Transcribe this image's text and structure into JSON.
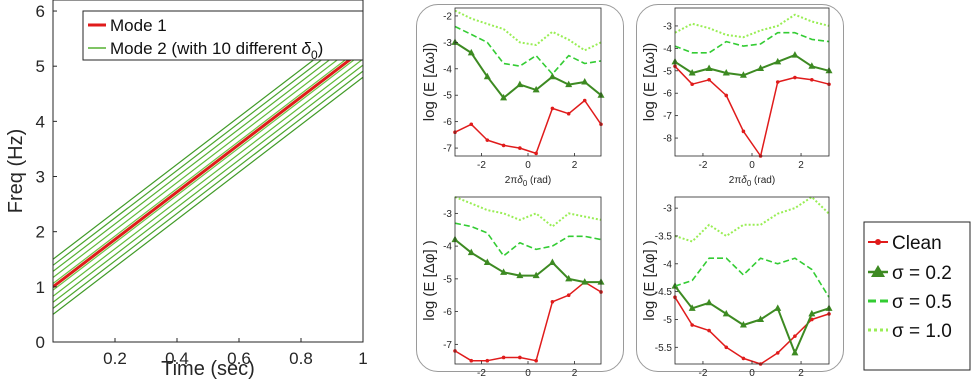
{
  "colors": {
    "mode1": "#e01b1b",
    "mode2": "#55b030",
    "clean": "#e01b1b",
    "s02": "#3d8a22",
    "s05": "#33cc33",
    "s10": "#99ee55"
  },
  "main_axis_labels": {
    "xlabel": "Time (sec)",
    "ylabel": "Freq (Hz)"
  },
  "panel_axis_labels": {
    "xlabel_prefix": "2π",
    "xlabel_symbol": "δ",
    "xlabel_sub": "0",
    "xlabel_suffix": " (rad)",
    "ylabel_omega": "log (E [Δω])",
    "ylabel_phi": "log (E [Δφ] )"
  },
  "main_legend": {
    "mode1": "Mode 1",
    "mode2_prefix": "Mode 2 (with 10 different ",
    "mode2_symbol": "δ",
    "mode2_sub": "0",
    "mode2_suffix": ")"
  },
  "noise_legend": {
    "clean": "Clean",
    "s02": "σ = 0.2",
    "s05": "σ = 0.5",
    "s10": "σ = 1.0"
  },
  "chart_data": [
    {
      "id": "main",
      "type": "line",
      "xlabel": "Time (sec)",
      "ylabel": "Freq (Hz)",
      "xlim": [
        0,
        1
      ],
      "ylim": [
        0,
        6.2
      ],
      "xticks": [
        "0.2",
        "0.4",
        "0.6",
        "0.8",
        "1"
      ],
      "yticks": [
        "0",
        "1",
        "2",
        "3",
        "4",
        "5",
        "6"
      ],
      "series": [
        {
          "name": "Mode 1",
          "x": [
            0,
            1
          ],
          "y": [
            1.0,
            5.3
          ]
        },
        {
          "name": "Mode 2 (with 10 different δ0)",
          "offsets": [
            -0.5,
            -0.39,
            -0.28,
            -0.17,
            -0.06,
            0.06,
            0.17,
            0.28,
            0.39,
            0.5
          ],
          "x": [
            0,
            1
          ],
          "y": [
            1.0,
            5.3
          ]
        }
      ]
    },
    {
      "id": "panel_a",
      "type": "line",
      "xlabel": "2πδ0 (rad)",
      "ylabel": "log (E [Δω])",
      "xlim": [
        -3.14,
        3.14
      ],
      "ylim": [
        -7.3,
        -1.7
      ],
      "xticks": [
        "-2",
        "0",
        "2"
      ],
      "yticks": [
        "-7",
        "-6",
        "-5",
        "-4",
        "-3",
        "-2"
      ],
      "x": [
        -3.14,
        -2.44,
        -1.75,
        -1.05,
        -0.35,
        0.35,
        1.05,
        1.75,
        2.44,
        3.14
      ],
      "series": [
        {
          "name": "Clean",
          "values": [
            -6.4,
            -6.1,
            -6.7,
            -6.9,
            -7.0,
            -7.2,
            -5.5,
            -5.7,
            -5.2,
            -6.1
          ]
        },
        {
          "name": "σ = 0.2",
          "values": [
            -3.0,
            -3.4,
            -4.3,
            -5.1,
            -4.6,
            -4.8,
            -4.3,
            -4.6,
            -4.5,
            -5.0
          ]
        },
        {
          "name": "σ = 0.5",
          "values": [
            -2.4,
            -2.7,
            -3.0,
            -3.8,
            -3.9,
            -3.5,
            -4.2,
            -3.5,
            -3.8,
            -3.7
          ]
        },
        {
          "name": "σ = 1.0",
          "values": [
            -1.8,
            -2.1,
            -2.3,
            -2.5,
            -3.0,
            -3.1,
            -2.6,
            -2.9,
            -3.3,
            -3.0
          ]
        }
      ]
    },
    {
      "id": "panel_b",
      "type": "line",
      "xlabel": "2πδ0 (rad)",
      "ylabel": "log (E [Δω])",
      "xlim": [
        -3.14,
        3.14
      ],
      "ylim": [
        -8.8,
        -2.2
      ],
      "xticks": [
        "-2",
        "0",
        "2"
      ],
      "yticks": [
        "-8",
        "-7",
        "-6",
        "-5",
        "-4",
        "-3"
      ],
      "x": [
        -3.14,
        -2.44,
        -1.75,
        -1.05,
        -0.35,
        0.35,
        1.05,
        1.75,
        2.44,
        3.14
      ],
      "series": [
        {
          "name": "Clean",
          "values": [
            -4.8,
            -5.6,
            -5.4,
            -6.1,
            -7.7,
            -8.8,
            -5.5,
            -5.3,
            -5.4,
            -5.6
          ]
        },
        {
          "name": "σ = 0.2",
          "values": [
            -4.6,
            -5.1,
            -4.9,
            -5.1,
            -5.2,
            -4.9,
            -4.6,
            -4.3,
            -4.8,
            -5.0
          ]
        },
        {
          "name": "σ = 0.5",
          "values": [
            -3.9,
            -4.2,
            -4.2,
            -3.7,
            -3.9,
            -3.8,
            -3.3,
            -3.3,
            -3.6,
            -3.7
          ]
        },
        {
          "name": "σ = 1.0",
          "values": [
            -3.3,
            -2.9,
            -3.1,
            -3.4,
            -3.5,
            -3.2,
            -3.0,
            -2.5,
            -2.8,
            -3.0
          ]
        }
      ]
    },
    {
      "id": "panel_c",
      "type": "line",
      "xlabel": "2πδ0 (rad)",
      "ylabel": "log (E [Δφ] )",
      "xlim": [
        -3.14,
        3.14
      ],
      "ylim": [
        -7.6,
        -2.5
      ],
      "xticks": [
        "-2",
        "0",
        "2"
      ],
      "yticks": [
        "-7",
        "-6",
        "-5",
        "-4",
        "-3"
      ],
      "x": [
        -3.14,
        -2.44,
        -1.75,
        -1.05,
        -0.35,
        0.35,
        1.05,
        1.75,
        2.44,
        3.14
      ],
      "series": [
        {
          "name": "Clean",
          "values": [
            -7.2,
            -7.5,
            -7.5,
            -7.4,
            -7.4,
            -7.5,
            -5.7,
            -5.5,
            -5.1,
            -5.4
          ]
        },
        {
          "name": "σ = 0.2",
          "values": [
            -3.8,
            -4.2,
            -4.5,
            -4.8,
            -4.9,
            -4.9,
            -4.5,
            -5.0,
            -5.1,
            -5.1
          ]
        },
        {
          "name": "σ = 0.5",
          "values": [
            -3.3,
            -3.4,
            -3.6,
            -4.3,
            -3.9,
            -4.1,
            -4.0,
            -3.7,
            -3.7,
            -3.8
          ]
        },
        {
          "name": "σ = 1.0",
          "values": [
            -2.5,
            -2.7,
            -2.9,
            -3.0,
            -3.2,
            -3.0,
            -3.4,
            -3.0,
            -3.1,
            -3.2
          ]
        }
      ]
    },
    {
      "id": "panel_d",
      "type": "line",
      "xlabel": "2πδ0 (rad)",
      "ylabel": "log (E [Δφ] )",
      "xlim": [
        -3.14,
        3.14
      ],
      "ylim": [
        -5.8,
        -2.8
      ],
      "xticks": [
        "-2",
        "0",
        "2"
      ],
      "yticks": [
        "-5.5",
        "-5",
        "-4.5",
        "-4",
        "-3.5",
        "-3"
      ],
      "x": [
        -3.14,
        -2.44,
        -1.75,
        -1.05,
        -0.35,
        0.35,
        1.05,
        1.75,
        2.44,
        3.14
      ],
      "series": [
        {
          "name": "Clean",
          "values": [
            -4.6,
            -5.1,
            -5.2,
            -5.5,
            -5.7,
            -5.8,
            -5.6,
            -5.3,
            -5.0,
            -4.9
          ]
        },
        {
          "name": "σ = 0.2",
          "values": [
            -4.4,
            -4.8,
            -4.7,
            -4.9,
            -5.1,
            -5.0,
            -4.8,
            -5.6,
            -4.9,
            -4.8
          ]
        },
        {
          "name": "σ = 0.5",
          "values": [
            -4.4,
            -4.3,
            -3.9,
            -3.9,
            -4.2,
            -3.9,
            -4.0,
            -3.9,
            -4.1,
            -4.6
          ]
        },
        {
          "name": "σ = 1.0",
          "values": [
            -3.5,
            -3.6,
            -3.3,
            -3.5,
            -3.3,
            -3.3,
            -3.1,
            -3.0,
            -2.8,
            -3.1
          ]
        }
      ]
    }
  ]
}
